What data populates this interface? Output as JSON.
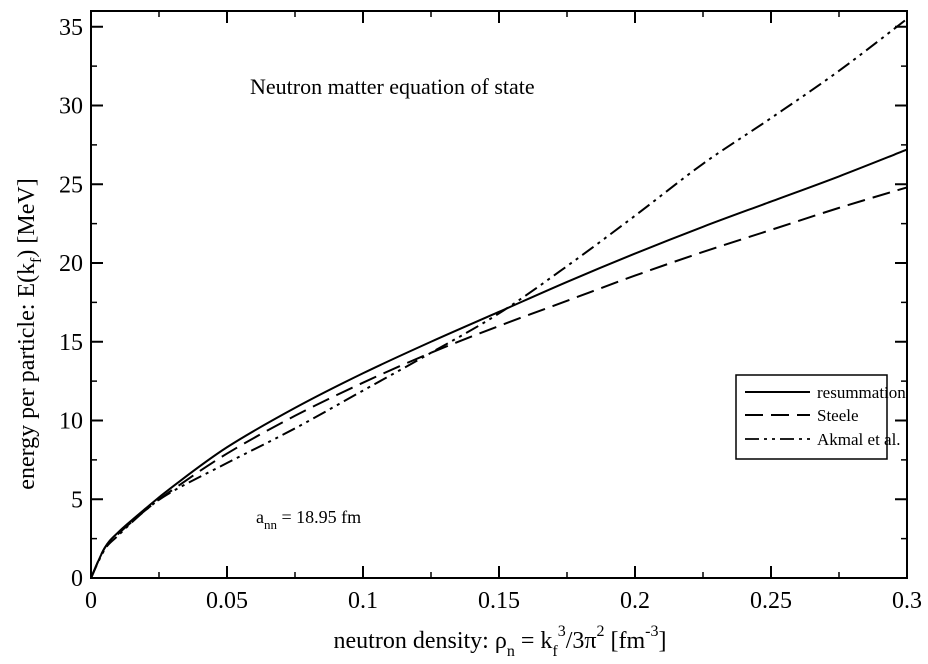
{
  "chart_data": {
    "type": "line",
    "title": "Neutron matter equation of state",
    "xlabel": {
      "prefix": "neutron density:  ρ",
      "sub_n": "n",
      "eq": " = k",
      "sub_f": "f",
      "sup_3": "3",
      "mid": "/3π",
      "sup_2": "2",
      "unit_open": "  [fm",
      "sup_m3": "-3",
      "unit_close": "]"
    },
    "ylabel": {
      "prefix": "energy per particle:  E(k",
      "sub_f": "f",
      "suffix": ")  [MeV]"
    },
    "xlim": [
      0,
      0.3
    ],
    "ylim": [
      0,
      36
    ],
    "xticks": [
      0,
      0.05,
      0.1,
      0.15,
      0.2,
      0.25,
      0.3
    ],
    "xtick_labels": [
      "0",
      "0.05",
      "0.1",
      "0.15",
      "0.2",
      "0.25",
      "0.3"
    ],
    "yticks": [
      0,
      5,
      10,
      15,
      20,
      25,
      30,
      35
    ],
    "ytick_labels": [
      "0",
      "5",
      "10",
      "15",
      "20",
      "25",
      "30",
      "35"
    ],
    "grid": false,
    "legend_position": "right, middle",
    "annotation": {
      "prefix": "a",
      "sub": "nn",
      "text": " = 18.95 fm"
    },
    "series": [
      {
        "name": "resummation",
        "dash": "solid",
        "x": [
          0,
          0.005,
          0.01,
          0.02,
          0.03,
          0.05,
          0.075,
          0.1,
          0.125,
          0.15,
          0.175,
          0.2,
          0.225,
          0.25,
          0.275,
          0.3
        ],
        "y": [
          0,
          1.9,
          2.9,
          4.4,
          5.8,
          8.3,
          10.8,
          13.0,
          15.0,
          16.9,
          18.8,
          20.6,
          22.3,
          23.9,
          25.5,
          27.2
        ]
      },
      {
        "name": "Steele",
        "dash": "long-dash",
        "x": [
          0,
          0.005,
          0.01,
          0.02,
          0.03,
          0.05,
          0.075,
          0.1,
          0.125,
          0.15,
          0.175,
          0.2,
          0.225,
          0.25,
          0.275,
          0.3
        ],
        "y": [
          0,
          1.9,
          2.8,
          4.3,
          5.6,
          7.9,
          10.3,
          12.4,
          14.3,
          16.0,
          17.6,
          19.2,
          20.7,
          22.1,
          23.5,
          24.8
        ]
      },
      {
        "name": "Akmal et al.",
        "dash": "dash-dot-dot",
        "x": [
          0,
          0.005,
          0.01,
          0.02,
          0.03,
          0.05,
          0.075,
          0.1,
          0.125,
          0.15,
          0.175,
          0.2,
          0.225,
          0.25,
          0.275,
          0.3
        ],
        "y": [
          0,
          1.8,
          2.7,
          4.3,
          5.5,
          7.3,
          9.5,
          11.9,
          14.3,
          16.8,
          19.8,
          23.0,
          26.3,
          29.2,
          32.2,
          35.5
        ]
      }
    ]
  }
}
